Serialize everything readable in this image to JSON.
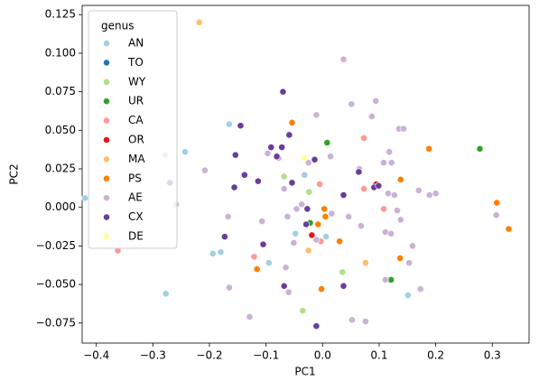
{
  "chart_data": {
    "type": "scatter",
    "xlabel": "PC1",
    "ylabel": "PC2",
    "legend_title": "genus",
    "legend_position": "upper left",
    "xlim": [
      -0.425,
      0.365
    ],
    "ylim": [
      -0.088,
      0.131
    ],
    "xticks": [
      {
        "value": -0.4,
        "label": "−0.4"
      },
      {
        "value": -0.3,
        "label": "−0.3"
      },
      {
        "value": -0.2,
        "label": "−0.2"
      },
      {
        "value": -0.1,
        "label": "−0.1"
      },
      {
        "value": 0.0,
        "label": "0.0"
      },
      {
        "value": 0.1,
        "label": "0.1"
      },
      {
        "value": 0.2,
        "label": "0.2"
      },
      {
        "value": 0.3,
        "label": "0.3"
      }
    ],
    "yticks": [
      {
        "value": -0.075,
        "label": "−0.075"
      },
      {
        "value": -0.05,
        "label": "−0.050"
      },
      {
        "value": -0.025,
        "label": "−0.025"
      },
      {
        "value": 0,
        "label": "0.000"
      },
      {
        "value": 0.025,
        "label": "0.025"
      },
      {
        "value": 0.05,
        "label": "0.050"
      },
      {
        "value": 0.075,
        "label": "0.075"
      },
      {
        "value": 0.1,
        "label": "0.100"
      },
      {
        "value": 0.125,
        "label": "0.125"
      }
    ],
    "series": [
      {
        "name": "AN",
        "color": "#a6cee3",
        "x": [
          -0.165,
          -0.243,
          -0.277,
          -0.194,
          -0.18,
          -0.095,
          -0.048,
          -0.032,
          0.006,
          0.151,
          -0.42
        ],
        "values": [
          0.054,
          0.036,
          -0.056,
          -0.03,
          -0.029,
          -0.036,
          -0.017,
          0.021,
          -0.019,
          -0.057,
          0.006
        ]
      },
      {
        "name": "TO",
        "color": "#1f78b4",
        "x": [],
        "values": []
      },
      {
        "name": "WY",
        "color": "#b2df8a",
        "x": [
          -0.068,
          -0.024,
          -0.035,
          0.035
        ],
        "values": [
          0.02,
          0.01,
          -0.067,
          -0.042
        ]
      },
      {
        "name": "UR",
        "color": "#33a02c",
        "x": [
          0.008,
          0.278,
          -0.022,
          0.121
        ],
        "values": [
          0.042,
          0.038,
          -0.01,
          -0.047
        ]
      },
      {
        "name": "CA",
        "color": "#fb9a99",
        "x": [
          -0.362,
          -0.121,
          -0.005,
          0.073,
          0.073,
          0.108,
          -0.003
        ],
        "values": [
          -0.028,
          -0.032,
          0.015,
          0.045,
          0.012,
          -0.001,
          -0.022
        ]
      },
      {
        "name": "OR",
        "color": "#e31a1c",
        "x": [
          0.095,
          -0.019
        ],
        "values": [
          0.015,
          -0.018
        ]
      },
      {
        "name": "MA",
        "color": "#fdbf6f",
        "x": [
          -0.218,
          -0.025,
          0.076
        ],
        "values": [
          0.12,
          -0.028,
          -0.036
        ]
      },
      {
        "name": "PS",
        "color": "#ff7f00",
        "x": [
          -0.054,
          -0.116,
          -0.002,
          0.003,
          0.005,
          0.03,
          0.137,
          0.138,
          0.188,
          0.308,
          0.329,
          -0.008
        ],
        "values": [
          0.055,
          -0.04,
          -0.053,
          -0.001,
          -0.006,
          -0.022,
          -0.033,
          0.018,
          0.038,
          0.003,
          -0.014,
          -0.011
        ]
      },
      {
        "name": "AE",
        "color": "#cab2d6",
        "x": [
          -0.278,
          -0.259,
          -0.208,
          -0.167,
          -0.165,
          -0.129,
          -0.107,
          -0.097,
          -0.078,
          -0.062,
          -0.065,
          -0.051,
          -0.046,
          -0.037,
          -0.025,
          -0.011,
          0.014,
          0.016,
          0.037,
          0.051,
          0.087,
          0.094,
          0.068,
          0.052,
          0.076,
          0.065,
          0.046,
          0.108,
          0.118,
          0.122,
          0.135,
          0.143,
          0.116,
          0.127,
          0.132,
          0.138,
          0.111,
          0.121,
          0.159,
          0.17,
          0.189,
          0.2,
          0.153,
          0.173,
          0.111,
          0.307,
          -0.06,
          -0.011,
          -0.068
        ],
        "values": [
          0.034,
          0.002,
          0.024,
          -0.006,
          -0.052,
          -0.071,
          -0.009,
          0.035,
          0.032,
          -0.006,
          -0.039,
          -0.023,
          -0.001,
          0.002,
          0.029,
          0.06,
          0.033,
          -0.004,
          0.096,
          0.067,
          0.059,
          0.069,
          -0.012,
          -0.073,
          -0.074,
          0.025,
          -0.006,
          0.029,
          0.036,
          0.029,
          0.051,
          0.051,
          0.009,
          0.008,
          -0.002,
          -0.008,
          -0.016,
          -0.017,
          -0.025,
          0.011,
          0.008,
          0.009,
          -0.036,
          -0.053,
          -0.047,
          -0.005,
          -0.055,
          -0.021,
          0.012
        ]
      },
      {
        "name": "CX",
        "color": "#6a3d9a",
        "x": [
          -0.27,
          -0.173,
          -0.156,
          -0.145,
          -0.154,
          -0.138,
          -0.114,
          -0.105,
          -0.091,
          -0.081,
          -0.07,
          -0.059,
          -0.054,
          -0.068,
          -0.072,
          -0.027,
          -0.014,
          -0.029,
          -0.011,
          0.037,
          0.064,
          0.091,
          0.099,
          0.037
        ],
        "values": [
          0.016,
          -0.019,
          0.013,
          0.053,
          0.034,
          0.021,
          0.017,
          -0.024,
          0.039,
          0.033,
          0.075,
          0.047,
          0.016,
          -0.051,
          0.039,
          -0.001,
          0.031,
          -0.011,
          -0.077,
          -0.051,
          0.023,
          0.013,
          0.014,
          0.008
        ]
      },
      {
        "name": "DE",
        "color": "#ffff99",
        "x": [
          -0.032
        ],
        "values": [
          0.032
        ]
      }
    ]
  }
}
